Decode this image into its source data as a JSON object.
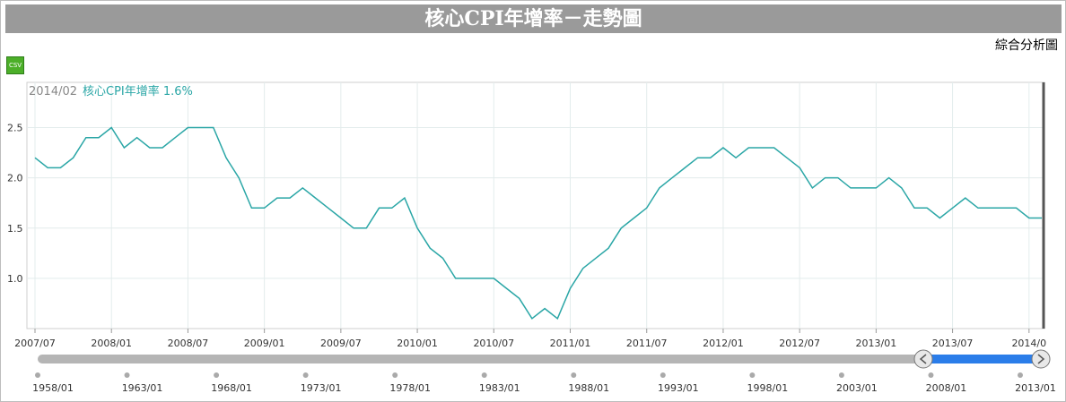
{
  "header": {
    "title": "核心CPI年增率－走勢圖",
    "composite_link": "綜合分析圖",
    "csv_label": "CSV"
  },
  "colors": {
    "line": "#2aa6a6",
    "title_bg": "#9a9a9a",
    "navigator_track": "#b5b5b5",
    "navigator_selected": "#2b7de9"
  },
  "tooltip": {
    "date": "2014/02",
    "series_label": "核心CPI年增率 1.6%"
  },
  "chart_data": {
    "type": "line",
    "x_start": "2007/07",
    "x_end": "2014/02",
    "x_tick_labels": [
      "2007/07",
      "2008/01",
      "2008/07",
      "2009/01",
      "2009/07",
      "2010/01",
      "2010/07",
      "2011/01",
      "2011/07",
      "2012/01",
      "2012/07",
      "2013/01",
      "2013/07",
      "2014/0"
    ],
    "y_tick_labels": [
      "2.5",
      "2.0",
      "1.5",
      "1.0"
    ],
    "y_ticks": [
      2.5,
      2.0,
      1.5,
      1.0
    ],
    "ylim": [
      0.5,
      2.95
    ],
    "grid": true,
    "series": [
      {
        "values": [
          2.2,
          2.1,
          2.1,
          2.2,
          2.4,
          2.4,
          2.5,
          2.3,
          2.4,
          2.3,
          2.3,
          2.4,
          2.5,
          2.5,
          2.5,
          2.2,
          2.0,
          1.7,
          1.7,
          1.8,
          1.8,
          1.9,
          1.8,
          1.7,
          1.6,
          1.5,
          1.5,
          1.7,
          1.7,
          1.8,
          1.5,
          1.3,
          1.2,
          1.0,
          1.0,
          1.0,
          1.0,
          0.9,
          0.8,
          0.6,
          0.7,
          0.6,
          0.9,
          1.1,
          1.2,
          1.3,
          1.5,
          1.6,
          1.7,
          1.9,
          2.0,
          2.1,
          2.2,
          2.2,
          2.3,
          2.2,
          2.3,
          2.3,
          2.3,
          2.2,
          2.1,
          1.9,
          2.0,
          2.0,
          1.9,
          1.9,
          1.9,
          2.0,
          1.9,
          1.7,
          1.7,
          1.6,
          1.7,
          1.8,
          1.7,
          1.7,
          1.7,
          1.7,
          1.6,
          1.6
        ]
      }
    ],
    "navigator": {
      "labels": [
        "1958/01",
        "1963/01",
        "1968/01",
        "1973/01",
        "1978/01",
        "1983/01",
        "1988/01",
        "1993/01",
        "1998/01",
        "2003/01",
        "2008/01",
        "2013/01"
      ]
    }
  }
}
